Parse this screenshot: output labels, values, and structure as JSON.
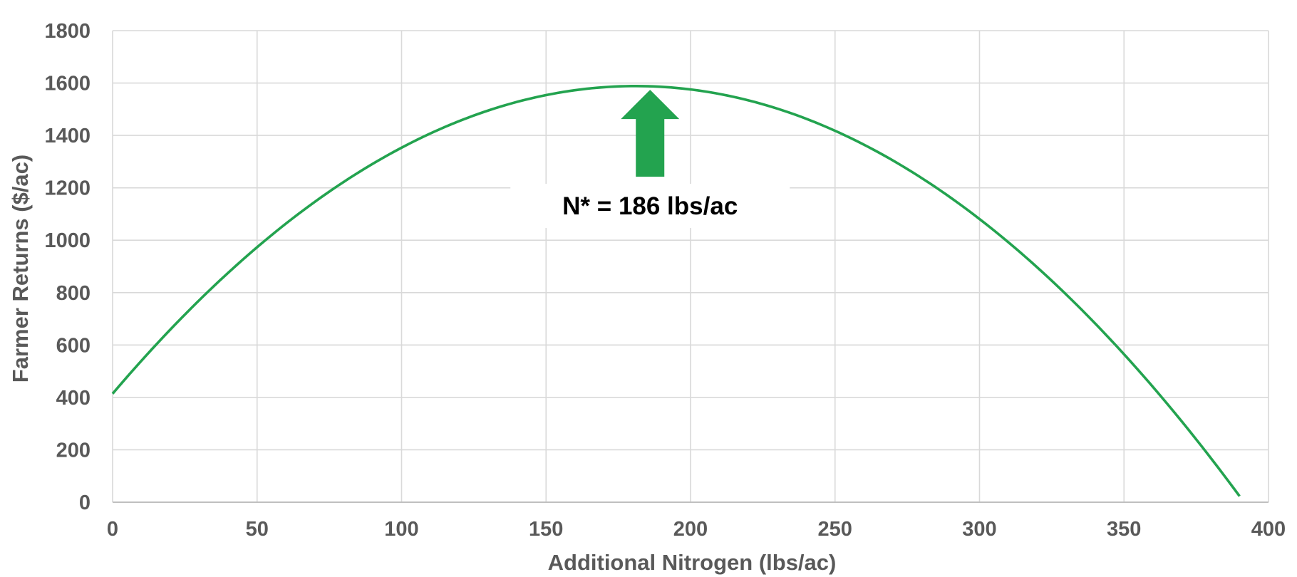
{
  "chart_data": {
    "type": "line",
    "xlabel": "Additional Nitrogen (lbs/ac)",
    "ylabel": "Farmer Returns ($/ac)",
    "xlim": [
      0,
      400
    ],
    "ylim": [
      0,
      1800
    ],
    "x_ticks": [
      "0",
      "50",
      "100",
      "150",
      "200",
      "250",
      "300",
      "350",
      "400"
    ],
    "y_ticks": [
      "0",
      "200",
      "400",
      "600",
      "800",
      "1000",
      "1200",
      "1400",
      "1600",
      "1800"
    ],
    "grid": true,
    "series": [
      {
        "color": "#23a34f",
        "x": [
          0,
          50,
          100,
          150,
          186,
          200,
          250,
          300,
          350,
          390
        ],
        "y": [
          445,
          952,
          1327,
          1540,
          1585,
          1582,
          1440,
          1105,
          568,
          0
        ]
      }
    ],
    "annotations": [
      {
        "text": "N* = 186 lbs/ac",
        "x": 186,
        "y": 1585,
        "arrow": "up",
        "arrow_color": "#23a34f"
      }
    ]
  }
}
